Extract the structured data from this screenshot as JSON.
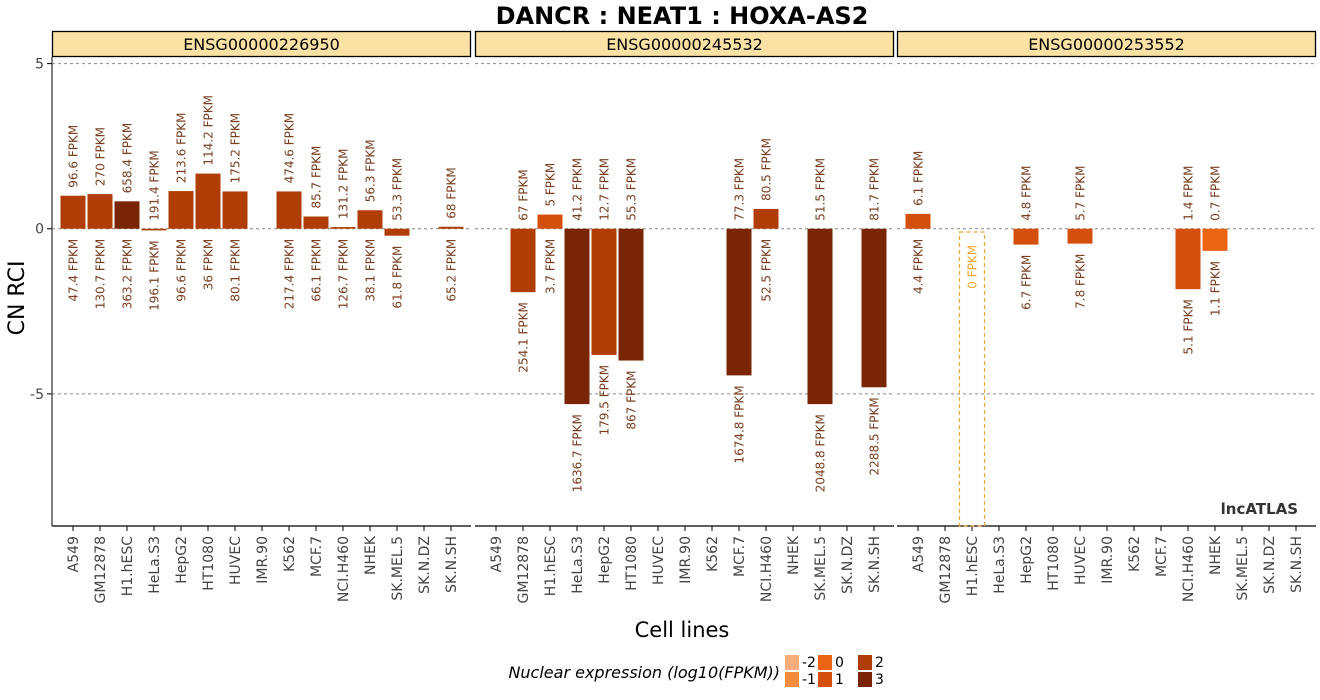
{
  "chart_data": {
    "type": "bar",
    "title": "DANCR : NEAT1 : HOXA-AS2",
    "xlabel": "Cell lines",
    "ylabel": "CN RCI",
    "ylim": [
      -9,
      5.2
    ],
    "y_ticks": [
      5,
      0,
      -5
    ],
    "grid": "horizontal dashed",
    "watermark": "lncATLAS",
    "categories": [
      "A549",
      "GM12878",
      "H1.hESC",
      "HeLa.S3",
      "HepG2",
      "HT1080",
      "HUVEC",
      "IMR.90",
      "K562",
      "MCF.7",
      "NCI.H460",
      "NHEK",
      "SK.MEL.5",
      "SK.N.DZ",
      "SK.N.SH"
    ],
    "panels": [
      {
        "gene_id": "ENSG00000226950",
        "cells": [
          {
            "name": "A549",
            "rci": 1.0,
            "nuc_log10": 1.68,
            "top": "96.6 FPKM",
            "bottom": "47.4 FPKM"
          },
          {
            "name": "GM12878",
            "rci": 1.05,
            "nuc_log10": 2.12,
            "top": "270 FPKM",
            "bottom": "130.7 FPKM"
          },
          {
            "name": "H1.hESC",
            "rci": 0.83,
            "nuc_log10": 2.56,
            "top": "658.4 FPKM",
            "bottom": "363.2 FPKM"
          },
          {
            "name": "HeLa.S3",
            "rci": -0.05,
            "nuc_log10": 2.29,
            "top": "191.4 FPKM",
            "bottom": "196.1 FPKM"
          },
          {
            "name": "HepG2",
            "rci": 1.14,
            "nuc_log10": 1.98,
            "top": "213.6 FPKM",
            "bottom": "96.6 FPKM"
          },
          {
            "name": "HT1080",
            "rci": 1.67,
            "nuc_log10": 1.56,
            "top": "114.2 FPKM",
            "bottom": "36 FPKM"
          },
          {
            "name": "HUVEC",
            "rci": 1.13,
            "nuc_log10": 1.9,
            "top": "175.2 FPKM",
            "bottom": "80.1 FPKM"
          },
          {
            "name": "IMR.90",
            "rci": null
          },
          {
            "name": "K562",
            "rci": 1.13,
            "nuc_log10": 2.34,
            "top": "474.6 FPKM",
            "bottom": "217.4 FPKM"
          },
          {
            "name": "MCF.7",
            "rci": 0.37,
            "nuc_log10": 1.82,
            "top": "85.7 FPKM",
            "bottom": "66.1 FPKM"
          },
          {
            "name": "NCI.H460",
            "rci": 0.05,
            "nuc_log10": 2.1,
            "top": "131.2 FPKM",
            "bottom": "126.7 FPKM"
          },
          {
            "name": "NHEK",
            "rci": 0.56,
            "nuc_log10": 1.58,
            "top": "56.3 FPKM",
            "bottom": "38.1 FPKM"
          },
          {
            "name": "SK.MEL.5",
            "rci": -0.21,
            "nuc_log10": 1.79,
            "top": "53.3 FPKM",
            "bottom": "61.8 FPKM"
          },
          {
            "name": "SK.N.DZ",
            "rci": null
          },
          {
            "name": "SK.N.SH",
            "rci": 0.06,
            "nuc_log10": 1.81,
            "top": "68 FPKM",
            "bottom": "65.2 FPKM"
          }
        ]
      },
      {
        "gene_id": "ENSG00000245532",
        "cells": [
          {
            "name": "A549",
            "rci": null
          },
          {
            "name": "GM12878",
            "rci": -1.92,
            "nuc_log10": 2.41,
            "top": "67 FPKM",
            "bottom": "254.1 FPKM"
          },
          {
            "name": "H1.hESC",
            "rci": 0.43,
            "nuc_log10": 0.57,
            "top": "5 FPKM",
            "bottom": "3.7 FPKM"
          },
          {
            "name": "HeLa.S3",
            "rci": -5.31,
            "nuc_log10": 3.21,
            "top": "41.2 FPKM",
            "bottom": "1636.7 FPKM"
          },
          {
            "name": "HepG2",
            "rci": -3.82,
            "nuc_log10": 2.25,
            "top": "12.7 FPKM",
            "bottom": "179.5 FPKM"
          },
          {
            "name": "HT1080",
            "rci": -3.99,
            "nuc_log10": 2.94,
            "top": "55.3 FPKM",
            "bottom": "867 FPKM"
          },
          {
            "name": "HUVEC",
            "rci": null
          },
          {
            "name": "IMR.90",
            "rci": null
          },
          {
            "name": "K562",
            "rci": null
          },
          {
            "name": "MCF.7",
            "rci": -4.44,
            "nuc_log10": 3.22,
            "top": "77.3 FPKM",
            "bottom": "1674.8 FPKM"
          },
          {
            "name": "NCI.H460",
            "rci": 0.6,
            "nuc_log10": 1.72,
            "top": "80.5 FPKM",
            "bottom": "52.5 FPKM"
          },
          {
            "name": "NHEK",
            "rci": null
          },
          {
            "name": "SK.MEL.5",
            "rci": -5.31,
            "nuc_log10": 3.31,
            "top": "51.5 FPKM",
            "bottom": "2048.8 FPKM"
          },
          {
            "name": "SK.N.DZ",
            "rci": null
          },
          {
            "name": "SK.N.SH",
            "rci": -4.8,
            "nuc_log10": 3.36,
            "top": "81.7 FPKM",
            "bottom": "2288.5 FPKM"
          }
        ]
      },
      {
        "gene_id": "ENSG00000253552",
        "cells": [
          {
            "name": "A549",
            "rci": 0.45,
            "nuc_log10": 0.64,
            "top": "6.1 FPKM",
            "bottom": "4.4 FPKM"
          },
          {
            "name": "GM12878",
            "rci": null
          },
          {
            "name": "H1.hESC",
            "rci": 0.0,
            "nuc_log10": -3,
            "dashed": true,
            "top": "0 FPKM",
            "bottom": ""
          },
          {
            "name": "HeLa.S3",
            "rci": null
          },
          {
            "name": "HepG2",
            "rci": -0.48,
            "nuc_log10": 0.83,
            "top": "4.8 FPKM",
            "bottom": "6.7 FPKM"
          },
          {
            "name": "HT1080",
            "rci": null
          },
          {
            "name": "HUVEC",
            "rci": -0.45,
            "nuc_log10": 0.89,
            "top": "5.7 FPKM",
            "bottom": "7.8 FPKM"
          },
          {
            "name": "IMR.90",
            "rci": null
          },
          {
            "name": "K562",
            "rci": null
          },
          {
            "name": "MCF.7",
            "rci": null
          },
          {
            "name": "NCI.H460",
            "rci": -1.83,
            "nuc_log10": 0.71,
            "top": "1.4 FPKM",
            "bottom": "5.1 FPKM"
          },
          {
            "name": "NHEK",
            "rci": -0.67,
            "nuc_log10": 0.04,
            "top": "0.7 FPKM",
            "bottom": "1.1 FPKM"
          },
          {
            "name": "SK.MEL.5",
            "rci": null
          },
          {
            "name": "SK.N.DZ",
            "rci": null
          },
          {
            "name": "SK.N.SH",
            "rci": null
          }
        ]
      }
    ],
    "legend": {
      "title": "Nuclear expression (log10(FPKM))",
      "placement": "bottom",
      "items": [
        {
          "label": "-2",
          "color": "#f8ad7a"
        },
        {
          "label": "-1",
          "color": "#f58b3f"
        },
        {
          "label": "0",
          "color": "#ea6412"
        },
        {
          "label": "1",
          "color": "#d44f0c"
        },
        {
          "label": "2",
          "color": "#b13d06"
        },
        {
          "label": "3",
          "color": "#7a2505"
        }
      ]
    },
    "colors": {
      "strip_fill": "#fbe1a3",
      "zero_bar": "#f0a830",
      "fpkm_text": "#7a3f20",
      "tick_text": "#444444"
    }
  }
}
